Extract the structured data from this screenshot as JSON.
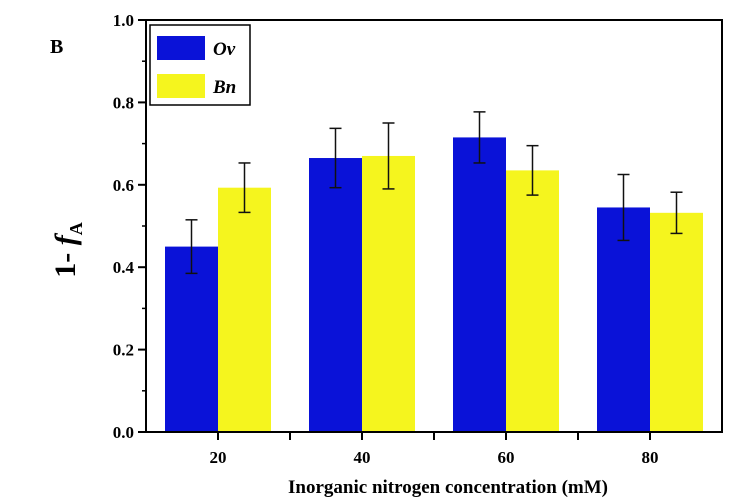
{
  "chart_data": {
    "type": "bar",
    "panel_label": "B",
    "xlabel": "Inorganic nitrogen concentration (mM)",
    "ylabel": {
      "prefix": "1- ",
      "var": "f",
      "sub": "A"
    },
    "categories": [
      "20",
      "40",
      "60",
      "80"
    ],
    "ylim": [
      0,
      1.0
    ],
    "yticks": [
      "0.0",
      "0.2",
      "0.4",
      "0.6",
      "0.8",
      "1.0"
    ],
    "legend_position": "top-left",
    "series": [
      {
        "name": "Ov",
        "color": "#0a12d8",
        "values": [
          0.45,
          0.665,
          0.715,
          0.545
        ],
        "errors": [
          0.065,
          0.072,
          0.062,
          0.08
        ]
      },
      {
        "name": "Bn",
        "color": "#f5f51e",
        "values": [
          0.593,
          0.67,
          0.635,
          0.532
        ],
        "errors": [
          0.06,
          0.08,
          0.06,
          0.05
        ]
      }
    ]
  }
}
